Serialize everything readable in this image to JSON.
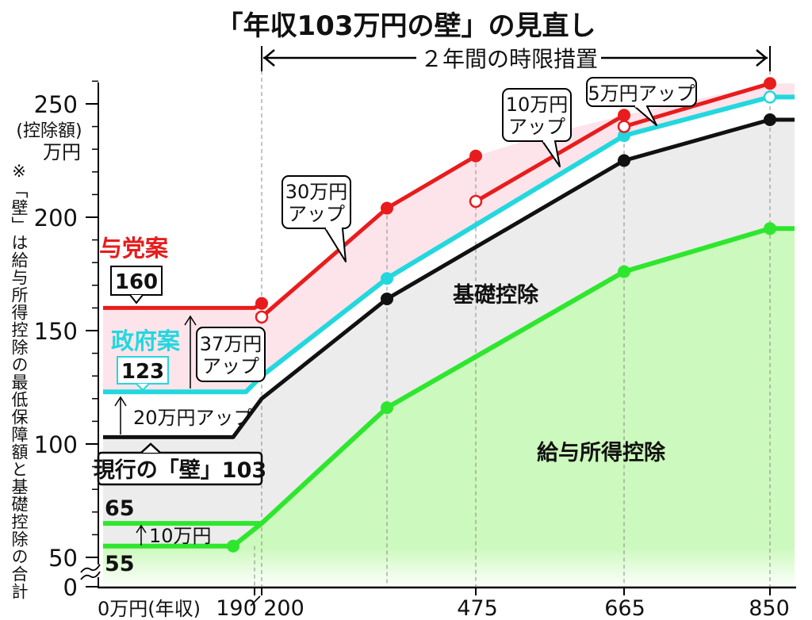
{
  "chart_data": {
    "type": "line",
    "title": "「年収103万円の壁」の見直し",
    "period_label": "２年間の時限措置",
    "y_unit_label_1": "(控除額)",
    "y_unit_label_2": "万円",
    "side_note": "※「壁」は給与所得控除の最低保障額と基礎控除の合計",
    "y_ticks": [
      0,
      50,
      100,
      150,
      200,
      250
    ],
    "x_ticks": [
      {
        "x": 0,
        "label": "0万円(年収)"
      },
      {
        "x": 190,
        "label": "190"
      },
      {
        "x": 200,
        "label": "200"
      },
      {
        "x": 475,
        "label": "475"
      },
      {
        "x": 665,
        "label": "665"
      },
      {
        "x": 850,
        "label": "850"
      }
    ],
    "series": [
      {
        "name": "与党案",
        "color": "#e81c1c",
        "segments": [
          [
            [
              0,
              160
            ],
            [
              190,
              160
            ],
            [
              200,
              162
            ]
          ],
          [
            [
              200,
              156
            ],
            [
              330,
              204
            ],
            [
              475,
              227
            ]
          ],
          [
            [
              475,
              207
            ],
            [
              665,
              245
            ]
          ],
          [
            [
              665,
              240
            ],
            [
              850,
              259
            ]
          ]
        ],
        "points": [
          [
            200,
            162
          ],
          [
            330,
            204
          ],
          [
            475,
            227
          ],
          [
            665,
            245
          ],
          [
            850,
            259
          ]
        ],
        "open_points": [
          [
            200,
            156
          ],
          [
            475,
            207
          ],
          [
            665,
            240
          ]
        ]
      },
      {
        "name": "政府案",
        "color": "#22d8de",
        "values": [
          [
            0,
            123
          ],
          [
            180,
            123
          ],
          [
            200,
            130
          ],
          [
            330,
            173
          ],
          [
            665,
            236
          ],
          [
            850,
            253
          ],
          [
            880,
            253
          ]
        ],
        "points": [
          [
            330,
            173
          ],
          [
            665,
            236
          ]
        ],
        "open_points": [
          [
            850,
            253
          ]
        ]
      },
      {
        "name": "現行",
        "color": "#111111",
        "values": [
          [
            0,
            103
          ],
          [
            165,
            103
          ],
          [
            200,
            120
          ],
          [
            330,
            164
          ],
          [
            665,
            225
          ],
          [
            850,
            243
          ],
          [
            880,
            243
          ]
        ],
        "points": [
          [
            330,
            164
          ],
          [
            665,
            225
          ],
          [
            850,
            243
          ]
        ]
      },
      {
        "name": "給与所得控除",
        "color": "#2ee62e",
        "values": [
          [
            0,
            55
          ],
          [
            165,
            55
          ],
          [
            200,
            65
          ],
          [
            330,
            116
          ],
          [
            665,
            176
          ],
          [
            850,
            195
          ],
          [
            880,
            195
          ]
        ],
        "points": [
          [
            165,
            55
          ],
          [
            330,
            116
          ],
          [
            665,
            176
          ],
          [
            850,
            195
          ]
        ]
      },
      {
        "name": "65",
        "color": "#2ee62e",
        "values": [
          [
            0,
            65
          ],
          [
            200,
            65
          ]
        ]
      }
    ],
    "labels": {
      "ruling": "与党案",
      "ruling_value": "160",
      "gov": "政府案",
      "gov_value": "123",
      "current": "現行の「壁」103",
      "up37_1": "37万円",
      "up37_2": "アップ",
      "up20": "20万円アップ",
      "up30_1": "30万円",
      "up30_2": "アップ",
      "up10_1": "10万円",
      "up10_2": "アップ",
      "up5": "5万円アップ",
      "basic": "基礎控除",
      "salary": "給与所得控除",
      "v65": "65",
      "v55": "55",
      "up10small": "10万円"
    },
    "colors": {
      "red": "#e81c1c",
      "cyan": "#22d8de",
      "black": "#111111",
      "green": "#2ee62e",
      "pink_fill": "#fde4ea",
      "gray_fill": "#ececec",
      "green_fill": "#ccf9bd"
    }
  }
}
